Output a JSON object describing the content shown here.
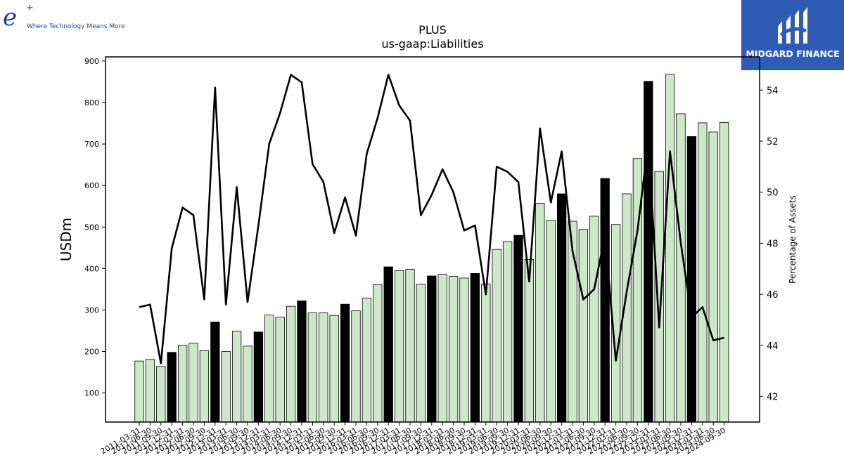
{
  "branding": {
    "left_logo_mark": "e",
    "left_logo_sup": "+",
    "left_tagline": "Where Technology Means More",
    "right_logo_text": "MIDGARD FINANCE",
    "right_bg": "#2e5cb5"
  },
  "chart_data": {
    "type": "bar",
    "title": "PLUS",
    "subtitle": "us-gaap:Liabilities",
    "ylabel": "USDm",
    "y2label": "Percentage of Assets",
    "ylim": [
      30,
      910
    ],
    "y2lim": [
      41,
      55.3
    ],
    "yticks": [
      100,
      200,
      300,
      400,
      500,
      600,
      700,
      800,
      900
    ],
    "y2ticks": [
      42,
      44,
      46,
      48,
      50,
      52,
      54
    ],
    "colors": {
      "bar": "#cce8c8",
      "bar_highlight": "#000000",
      "line": "#000000"
    },
    "categories": [
      "2011-03-31",
      "2011-06-30",
      "2011-09-30",
      "2011-12-31",
      "2012-03-31",
      "2012-06-30",
      "2012-09-30",
      "2012-12-31",
      "2013-03-31",
      "2013-06-30",
      "2013-09-30",
      "2013-12-31",
      "2014-03-31",
      "2014-06-30",
      "2014-09-30",
      "2014-12-31",
      "2015-03-31",
      "2015-06-30",
      "2015-09-30",
      "2015-12-31",
      "2016-03-31",
      "2016-06-30",
      "2016-09-30",
      "2016-12-31",
      "2017-03-31",
      "2017-06-30",
      "2017-09-30",
      "2017-12-31",
      "2018-03-31",
      "2018-06-30",
      "2018-09-30",
      "2018-12-31",
      "2019-03-31",
      "2019-06-30",
      "2019-09-30",
      "2019-12-31",
      "2020-03-31",
      "2020-06-30",
      "2020-09-30",
      "2020-12-31",
      "2021-03-31",
      "2021-06-30",
      "2021-09-30",
      "2021-12-31",
      "2022-03-31",
      "2022-06-30",
      "2022-09-30",
      "2022-12-31",
      "2023-03-31",
      "2023-06-30",
      "2023-09-30",
      "2023-12-31",
      "2024-03-31",
      "2024-06-30",
      "2024-09-30"
    ],
    "xtick_labels": [
      "2011-03-31",
      "2011-06-30",
      "2011-09-30",
      "2011-12-31",
      "2012-03-31",
      "2012-06-30",
      "2012-09-30",
      "2012-12-31",
      "2013-03-31",
      "2013-06-30",
      "2013-09-30",
      "2013-12-31",
      "2014-03-31",
      "2014-06-30",
      "2014-09-30",
      "2014-12-31",
      "2015-03-31",
      "2015-06-30",
      "2015-09-30",
      "2015-12-31",
      "2016-03-31",
      "2016-06-30",
      "2016-09-30",
      "2016-12-31",
      "2017-03-31",
      "2017-06-30",
      "2017-09-30",
      "2017-12-31",
      "2018-03-31",
      "2018-06-30",
      "2018-09-30",
      "2018-12-31",
      "2019-03-31",
      "2019-06-30",
      "2019-09-30",
      "2019-12-31",
      "2020-03-31",
      "2020-06-30",
      "2020-09-30",
      "2020-12-31",
      "2021-03-31",
      "2021-06-30",
      "2021-09-30",
      "2021-12-31",
      "2022-03-31",
      "2022-06-30",
      "2022-09-30",
      "2022-12-31",
      "2023-03-31",
      "2023-06-30",
      "2023-09-30",
      "2023-12-31",
      "2024-03-31",
      "2024-06-30",
      "2024-09-30"
    ],
    "series": [
      {
        "type": "bar",
        "axis": "left",
        "values": [
          177,
          181,
          164,
          198,
          215,
          220,
          202,
          271,
          200,
          249,
          213,
          247,
          288,
          283,
          309,
          322,
          293,
          293,
          287,
          314,
          298,
          329,
          361,
          404,
          395,
          398,
          362,
          382,
          386,
          381,
          377,
          388,
          363,
          446,
          465,
          480,
          422,
          557,
          516,
          580,
          514,
          494,
          526,
          617,
          506,
          580,
          665,
          851,
          634,
          868,
          773,
          718,
          751,
          729,
          752
        ],
        "highlight": [
          false,
          false,
          false,
          true,
          false,
          false,
          false,
          true,
          false,
          false,
          false,
          true,
          false,
          false,
          false,
          true,
          false,
          false,
          false,
          true,
          false,
          false,
          false,
          true,
          false,
          false,
          false,
          true,
          false,
          false,
          false,
          true,
          false,
          false,
          false,
          true,
          false,
          false,
          false,
          true,
          false,
          false,
          false,
          true,
          false,
          false,
          false,
          true,
          false,
          false,
          false,
          true,
          false,
          false,
          false
        ]
      },
      {
        "type": "line",
        "axis": "right",
        "values": [
          45.5,
          45.6,
          43.3,
          47.8,
          49.4,
          49.1,
          45.8,
          54.1,
          45.6,
          50.2,
          45.7,
          48.7,
          51.9,
          53.1,
          54.6,
          54.3,
          51.1,
          50.4,
          48.4,
          49.8,
          48.3,
          51.5,
          52.9,
          54.6,
          53.4,
          52.8,
          49.1,
          49.9,
          50.9,
          50.0,
          48.5,
          48.7,
          46.0,
          51.0,
          50.8,
          50.4,
          46.5,
          52.5,
          49.6,
          51.6,
          47.7,
          45.8,
          46.2,
          48.3,
          43.4,
          46.1,
          48.5,
          52.0,
          44.7,
          51.6,
          48.0,
          45.1,
          45.5,
          44.2,
          44.3
        ]
      }
    ]
  }
}
